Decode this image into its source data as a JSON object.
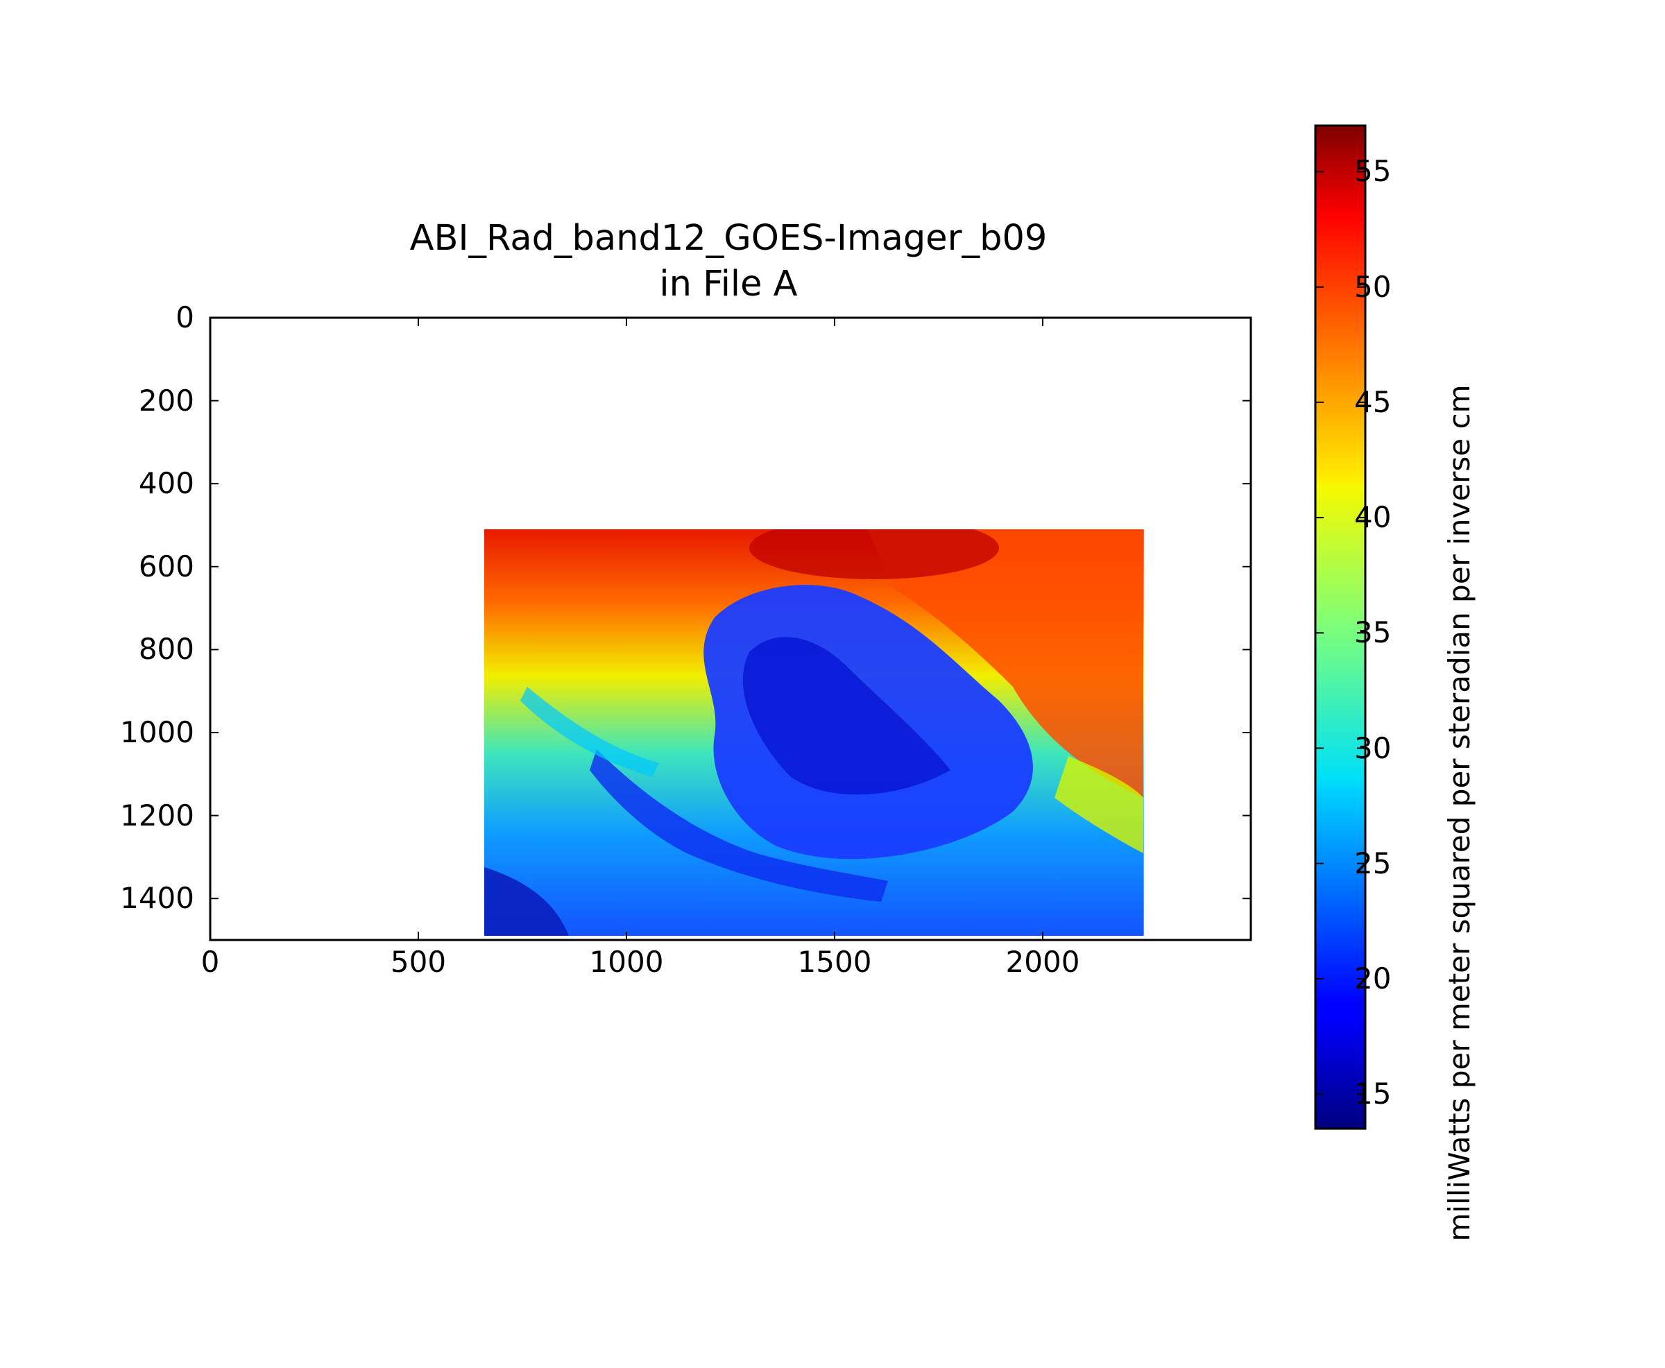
{
  "chart_data": {
    "type": "heatmap",
    "title": "ABI_Rad_band12_GOES-Imager_b09",
    "subtitle": "in File A",
    "xlabel": "",
    "ylabel": "",
    "xlim": [
      0,
      2500
    ],
    "ylim": [
      1500,
      0
    ],
    "x_ticks": [
      "0",
      "500",
      "1000",
      "1500",
      "2000"
    ],
    "y_ticks": [
      "0",
      "200",
      "400",
      "600",
      "800",
      "1000",
      "1200",
      "1400"
    ],
    "image_extent": {
      "x": [
        658,
        2243
      ],
      "y": [
        510,
        1490
      ]
    },
    "grid": false,
    "colorbar": {
      "label": "milliWatts per meter squared per steradian per inverse cm",
      "range": [
        13.5,
        57
      ],
      "ticks": [
        "15",
        "20",
        "25",
        "30",
        "35",
        "40",
        "45",
        "50",
        "55"
      ],
      "colormap": "jet"
    }
  }
}
